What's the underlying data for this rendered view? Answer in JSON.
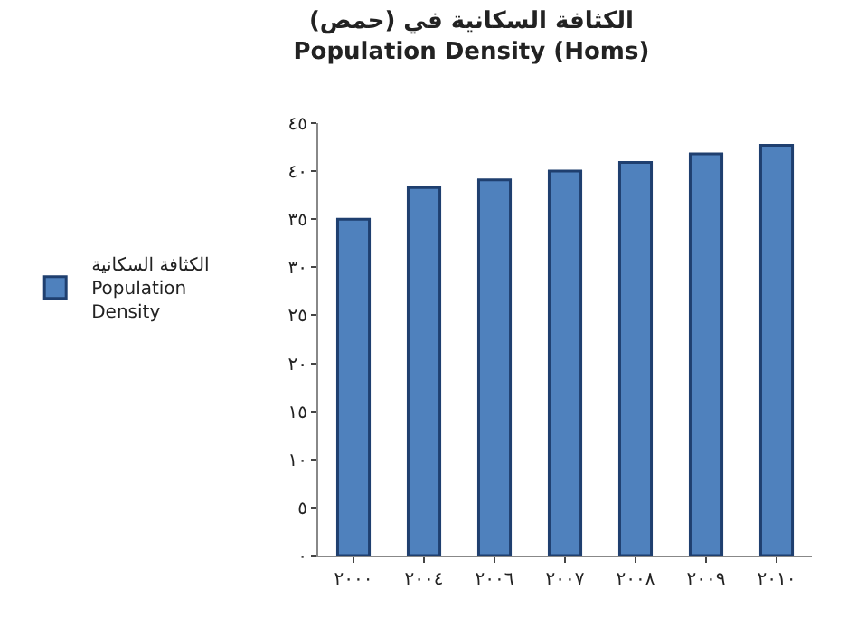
{
  "chart_data": {
    "type": "bar",
    "title": "الكثافة السكانية في (حمص)\nPopulation Density (Homs)",
    "categories": [
      "٢٠٠٠",
      "٢٠٠٤",
      "٢٠٠٦",
      "٢٠٠٧",
      "٢٠٠٨",
      "٢٠٠٩",
      "٢٠١٠"
    ],
    "series": [
      {
        "name": "الكثافة السكانية\nPopulation\nDensity",
        "color": "#4f81bd",
        "values": [
          35,
          38.3,
          39.1,
          40.0,
          40.9,
          41.8,
          42.7
        ]
      }
    ],
    "ylim": [
      0,
      45
    ],
    "yticks": [
      {
        "value": 0,
        "label": "٠"
      },
      {
        "value": 5,
        "label": "٥"
      },
      {
        "value": 10,
        "label": "١٠"
      },
      {
        "value": 15,
        "label": "١٥"
      },
      {
        "value": 20,
        "label": "٢٠"
      },
      {
        "value": 25,
        "label": "٢٥"
      },
      {
        "value": 30,
        "label": "٣٠"
      },
      {
        "value": 35,
        "label": "٣٥"
      },
      {
        "value": 40,
        "label": "٤٠"
      },
      {
        "value": 45,
        "label": "٤٥"
      }
    ],
    "legend": "left"
  }
}
